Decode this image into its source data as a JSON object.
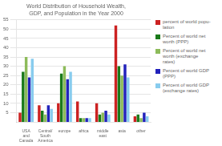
{
  "chart_data": {
    "type": "bar",
    "title": "World Distribution of Household Wealth,\nGDP, and Population in the Year 2000",
    "categories": [
      "USA\nand\nCanada",
      "Central/\nSouth\nAmerica",
      "europe",
      "africa",
      "middle\neast",
      "asia",
      "other"
    ],
    "series": [
      {
        "name": "percent of world popu-\nlation",
        "color": "#cc2222",
        "values": [
          5,
          9,
          10,
          11,
          10,
          52,
          3
        ]
      },
      {
        "name": "Percent of world net\nworth (PPP)",
        "color": "#1a7a1a",
        "values": [
          27,
          6,
          26,
          2,
          4,
          30,
          4
        ]
      },
      {
        "name": "Percent of world net\nworth (exchange\nrates)",
        "color": "#8dbb5a",
        "values": [
          35,
          4,
          30,
          2,
          5,
          25,
          2
        ]
      },
      {
        "name": "Percent of world GDP\n(PPP)",
        "color": "#2222bb",
        "values": [
          24,
          9,
          23,
          2,
          6,
          31,
          5
        ]
      },
      {
        "name": "Percent of world GDP\n(exchange rates)",
        "color": "#88ccee",
        "values": [
          34,
          7,
          27,
          2,
          4,
          24,
          3
        ]
      }
    ],
    "ylim": [
      0,
      55
    ],
    "yticks": [
      5,
      10,
      15,
      20,
      25,
      30,
      35,
      40,
      45,
      50,
      55
    ],
    "grid": true,
    "legend": "right"
  }
}
